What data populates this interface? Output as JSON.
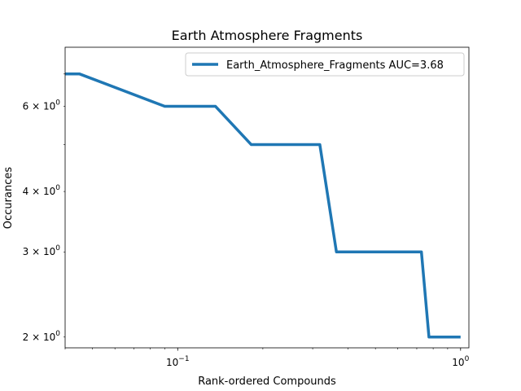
{
  "chart_data": {
    "type": "line",
    "title": "Earth Atmosphere Fragments",
    "xlabel": "Rank-ordered Compounds",
    "ylabel": "Occurances",
    "xscale": "log",
    "yscale": "log",
    "xlim": [
      0.04,
      1.07
    ],
    "ylim": [
      1.9,
      7.95
    ],
    "x_ticks": [
      {
        "value": 0.1,
        "base": "10",
        "exp": "−1"
      },
      {
        "value": 1,
        "base": "10",
        "exp": "0"
      }
    ],
    "y_ticks": [
      {
        "value": 2,
        "coef": "2",
        "base": "10",
        "exp": "0"
      },
      {
        "value": 3,
        "coef": "3",
        "base": "10",
        "exp": "0"
      },
      {
        "value": 4,
        "coef": "4",
        "base": "10",
        "exp": "0"
      },
      {
        "value": 6,
        "coef": "6",
        "base": "10",
        "exp": "0"
      }
    ],
    "legend_position": "upper right",
    "series": [
      {
        "name": "Earth_Atmosphere_Fragments AUC=3.68",
        "color": "#1f77b4",
        "x": [
          0.04,
          0.045,
          0.09,
          0.136,
          0.182,
          0.318,
          0.364,
          0.727,
          0.773,
          1.0
        ],
        "y": [
          7.0,
          7.0,
          6.0,
          6.0,
          5.0,
          5.0,
          3.0,
          3.0,
          2.0,
          2.0
        ]
      }
    ]
  }
}
